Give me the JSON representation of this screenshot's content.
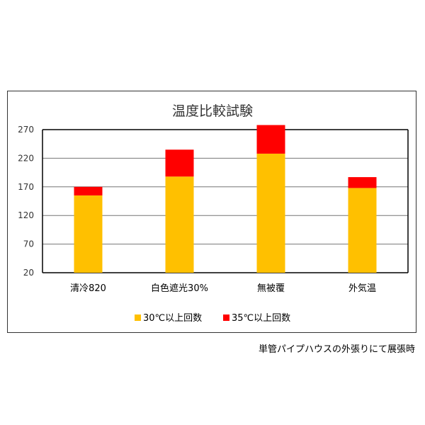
{
  "chart_data": {
    "type": "bar",
    "stacked": true,
    "title": "温度比較試験",
    "categories": [
      "清冷820",
      "白色遮光30%",
      "無被覆",
      "外気温"
    ],
    "series": [
      {
        "name": "30℃以上回数",
        "values": [
          135,
          168,
          208,
          148
        ],
        "color": "#FFC000"
      },
      {
        "name": "35℃以上回数",
        "values": [
          15,
          47,
          50,
          19
        ],
        "color": "#FF0000"
      }
    ],
    "ylim": [
      20,
      270
    ],
    "yticks": [
      20,
      70,
      120,
      170,
      220,
      270
    ],
    "grid": true,
    "legend": "bottom",
    "xlabel": "",
    "ylabel": ""
  },
  "footnote": "単管パイプハウスの外張りにて展張時"
}
